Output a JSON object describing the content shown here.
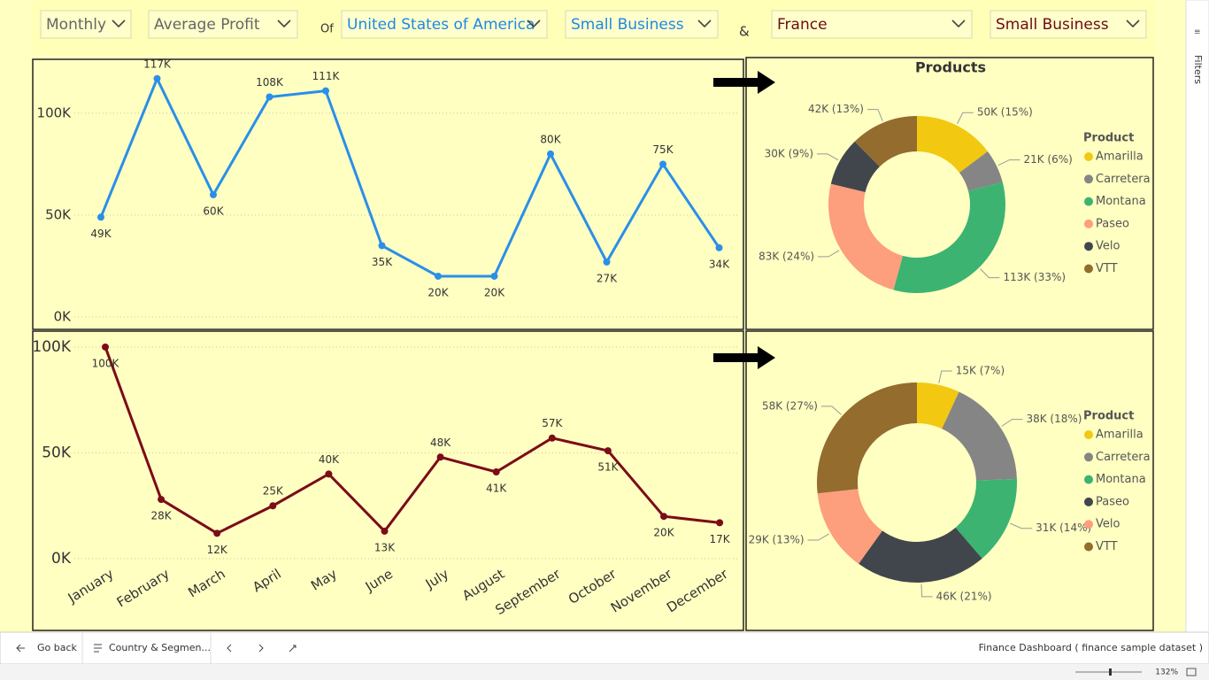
{
  "filters": {
    "period": "Monthly",
    "measure": "Average Profit",
    "of": "Of",
    "country_1": "United States of America",
    "segment_1": "Small Business",
    "and": "&",
    "country_2": "France",
    "segment_2": "Small Business"
  },
  "chart_data": [
    {
      "type": "line",
      "color": "#2a8fe8",
      "grid": true,
      "values": [
        49000,
        117000,
        60000,
        108000,
        111000,
        35000,
        20000,
        20000,
        80000,
        27000,
        75000,
        34000
      ],
      "value_labels": [
        "49K",
        "117K",
        "60K",
        "108K",
        "111K",
        "35K",
        "20K",
        "20K",
        "80K",
        "27K",
        "75K",
        "34K"
      ],
      "ylim": [
        0,
        123000
      ],
      "yticks": [
        {
          "value": 0,
          "label": "0K"
        },
        {
          "value": 50000,
          "label": "50K"
        },
        {
          "value": 100000,
          "label": "100K"
        }
      ]
    },
    {
      "type": "donut",
      "title": "Products",
      "legend_title": "Product",
      "categories": [
        "Amarilla",
        "Carretera",
        "Montana",
        "Paseo",
        "Velo",
        "VTT"
      ],
      "values": [
        50000,
        21000,
        113000,
        83000,
        30000,
        42000
      ],
      "value_labels": [
        "50K (15%)",
        "21K (6%)",
        "113K (33%)",
        "83K (24%)",
        "30K (9%)",
        "42K (13%)"
      ],
      "colors": [
        "#f2c811",
        "#858585",
        "#3cb371",
        "#fd9e7c",
        "#41464d",
        "#936c2e"
      ]
    },
    {
      "type": "line",
      "color": "#7b0c18",
      "grid": true,
      "categories": [
        "January",
        "February",
        "March",
        "April",
        "May",
        "June",
        "July",
        "August",
        "September",
        "October",
        "November",
        "December"
      ],
      "values": [
        100000,
        28000,
        12000,
        25000,
        40000,
        13000,
        48000,
        41000,
        57000,
        51000,
        20000,
        17000
      ],
      "value_labels": [
        "100K",
        "28K",
        "12K",
        "25K",
        "40K",
        "13K",
        "48K",
        "41K",
        "57K",
        "51K",
        "20K",
        "17K"
      ],
      "ylim": [
        0,
        105000
      ],
      "yticks": [
        {
          "value": 0,
          "label": "0K"
        },
        {
          "value": 50000,
          "label": "50K"
        },
        {
          "value": 100000,
          "label": "100K"
        }
      ]
    },
    {
      "type": "donut",
      "legend_title": "Product",
      "categories": [
        "Amarilla",
        "Carretera",
        "Montana",
        "Paseo",
        "Velo",
        "VTT"
      ],
      "values": [
        15000,
        38000,
        31000,
        46000,
        29000,
        58000
      ],
      "value_labels": [
        "15K (7%)",
        "38K (18%)",
        "31K (14%)",
        "46K (21%)",
        "29K (13%)",
        "58K (27%)"
      ],
      "colors": [
        "#f2c811",
        "#858585",
        "#3cb371",
        "#41464d",
        "#fd9e7c",
        "#936c2e"
      ]
    }
  ],
  "filters_pane": "Filters",
  "footer": {
    "back": "Go back",
    "page": "Country & Segmen...",
    "report": "Finance Dashboard ( finance sample dataset )",
    "zoom": "132%"
  }
}
